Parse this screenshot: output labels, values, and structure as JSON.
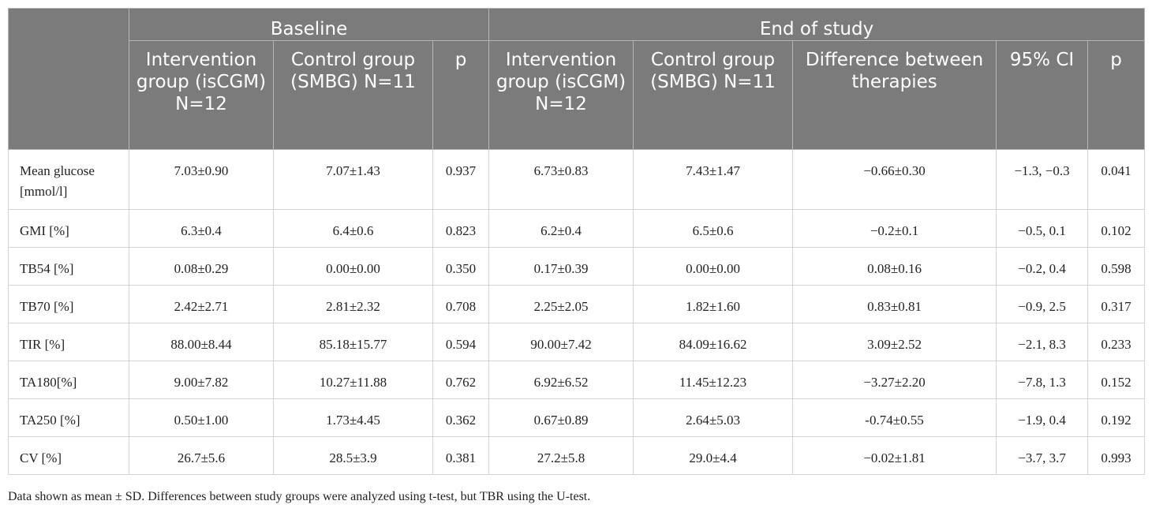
{
  "header": {
    "baseline": "Baseline",
    "end_of_study": "End of study",
    "columns": {
      "intervention_baseline": "Intervention group (isCGM) N=12",
      "control_baseline": "Control group (SMBG) N=11",
      "p_baseline": "p",
      "intervention_end": "Intervention group (isCGM) N=12",
      "control_end": "Control group (SMBG) N=11",
      "difference": "Difference between therapies",
      "ci": "95% CI",
      "p_end": "p"
    }
  },
  "rows": [
    {
      "label": "Mean glucose [mmol/l]",
      "int_base": "7.03±0.90",
      "ctl_base": "7.07±1.43",
      "p_base": "0.937",
      "int_end": "6.73±0.83",
      "ctl_end": "7.43±1.47",
      "diff": "−0.66±0.30",
      "ci": "−1.3, −0.3",
      "p_end": "0.041"
    },
    {
      "label": "GMI [%]",
      "int_base": "6.3±0.4",
      "ctl_base": "6.4±0.6",
      "p_base": "0.823",
      "int_end": "6.2±0.4",
      "ctl_end": "6.5±0.6",
      "diff": "−0.2±0.1",
      "ci": "−0.5, 0.1",
      "p_end": "0.102"
    },
    {
      "label": "TB54 [%]",
      "int_base": "0.08±0.29",
      "ctl_base": "0.00±0.00",
      "p_base": "0.350",
      "int_end": "0.17±0.39",
      "ctl_end": "0.00±0.00",
      "diff": "0.08±0.16",
      "ci": "−0.2, 0.4",
      "p_end": "0.598"
    },
    {
      "label": "TB70 [%]",
      "int_base": "2.42±2.71",
      "ctl_base": "2.81±2.32",
      "p_base": "0.708",
      "int_end": "2.25±2.05",
      "ctl_end": "1.82±1.60",
      "diff": "0.83±0.81",
      "ci": "−0.9, 2.5",
      "p_end": "0.317"
    },
    {
      "label": "TIR [%]",
      "int_base": "88.00±8.44",
      "ctl_base": "85.18±15.77",
      "p_base": "0.594",
      "int_end": "90.00±7.42",
      "ctl_end": "84.09±16.62",
      "diff": "3.09±2.52",
      "ci": "−2.1, 8.3",
      "p_end": "0.233"
    },
    {
      "label": "TA180[%]",
      "int_base": "9.00±7.82",
      "ctl_base": "10.27±11.88",
      "p_base": "0.762",
      "int_end": "6.92±6.52",
      "ctl_end": "11.45±12.23",
      "diff": "−3.27±2.20",
      "ci": "−7.8, 1.3",
      "p_end": "0.152"
    },
    {
      "label": "TA250 [%]",
      "int_base": "0.50±1.00",
      "ctl_base": "1.73±4.45",
      "p_base": "0.362",
      "int_end": "0.67±0.89",
      "ctl_end": "2.64±5.03",
      "diff": "-0.74±0.55",
      "ci": "−1.9, 0.4",
      "p_end": "0.192"
    },
    {
      "label": "CV [%]",
      "int_base": "26.7±5.6",
      "ctl_base": "28.5±3.9",
      "p_base": "0.381",
      "int_end": "27.2±5.8",
      "ctl_end": "29.0±4.4",
      "diff": "−0.02±1.81",
      "ci": "−3.7, 3.7",
      "p_end": "0.993"
    }
  ],
  "footnote": "Data shown as mean ± SD. Differences between study groups were analyzed using t-test, but TBR using the U-test."
}
